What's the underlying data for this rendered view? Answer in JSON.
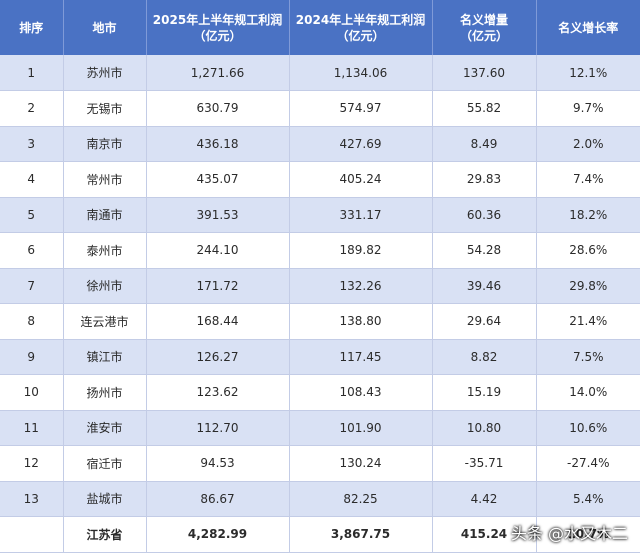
{
  "table": {
    "headers": [
      "排序",
      "地市",
      "2025年上半年规工利润\n（亿元）",
      "2024年上半年规工利润\n（亿元）",
      "名义增量\n（亿元）",
      "名义增长率"
    ],
    "rows": [
      [
        "1",
        "苏州市",
        "1,271.66",
        "1,134.06",
        "137.60",
        "12.1%"
      ],
      [
        "2",
        "无锡市",
        "630.79",
        "574.97",
        "55.82",
        "9.7%"
      ],
      [
        "3",
        "南京市",
        "436.18",
        "427.69",
        "8.49",
        "2.0%"
      ],
      [
        "4",
        "常州市",
        "435.07",
        "405.24",
        "29.83",
        "7.4%"
      ],
      [
        "5",
        "南通市",
        "391.53",
        "331.17",
        "60.36",
        "18.2%"
      ],
      [
        "6",
        "泰州市",
        "244.10",
        "189.82",
        "54.28",
        "28.6%"
      ],
      [
        "7",
        "徐州市",
        "171.72",
        "132.26",
        "39.46",
        "29.8%"
      ],
      [
        "8",
        "连云港市",
        "168.44",
        "138.80",
        "29.64",
        "21.4%"
      ],
      [
        "9",
        "镇江市",
        "126.27",
        "117.45",
        "8.82",
        "7.5%"
      ],
      [
        "10",
        "扬州市",
        "123.62",
        "108.43",
        "15.19",
        "14.0%"
      ],
      [
        "11",
        "淮安市",
        "112.70",
        "101.90",
        "10.80",
        "10.6%"
      ],
      [
        "12",
        "宿迁市",
        "94.53",
        "130.24",
        "-35.71",
        "-27.4%"
      ],
      [
        "13",
        "盐城市",
        "86.67",
        "82.25",
        "4.42",
        "5.4%"
      ]
    ],
    "total": [
      "",
      "江苏省",
      "4,282.99",
      "3,867.75",
      "415.24",
      "10.7%"
    ]
  },
  "watermark": "头条 @水又木二",
  "colors": {
    "header_bg": "#4a72c4",
    "stripe_bg": "#d9e1f4",
    "row_bg": "#ffffff"
  }
}
